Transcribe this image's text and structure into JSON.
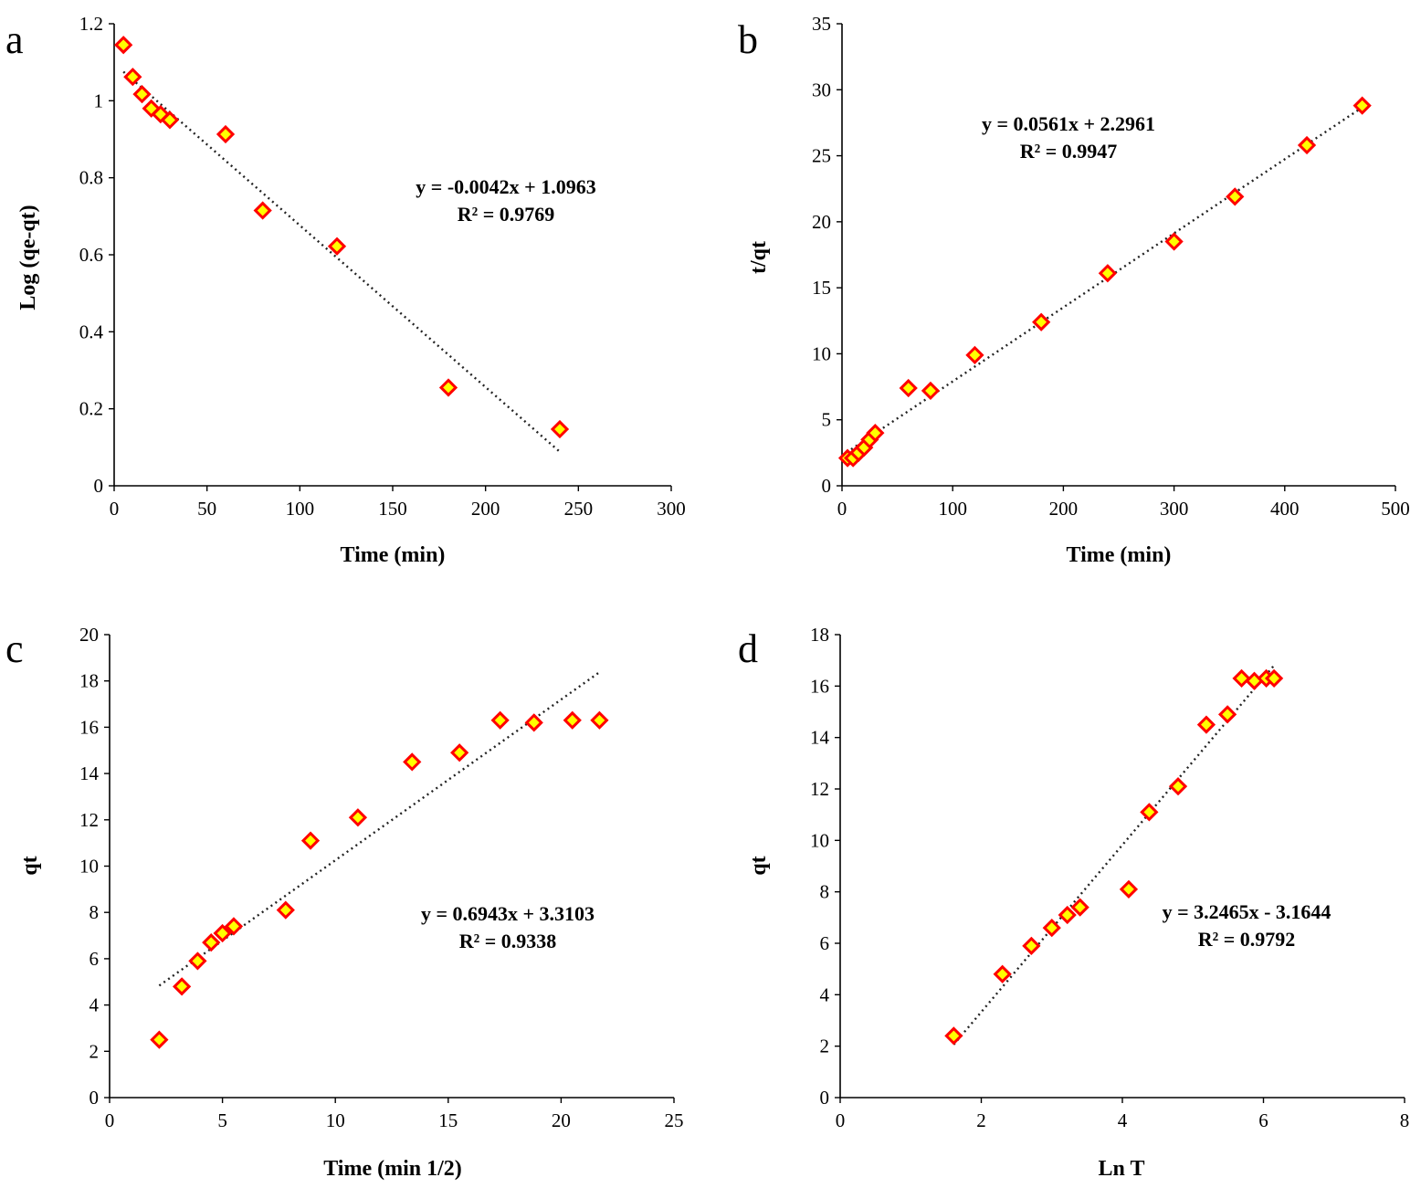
{
  "chart_data": [
    {
      "type": "scatter",
      "panel": "a",
      "xlabel": "Time (min)",
      "ylabel": "Log (qe-qt)",
      "xlim": [
        0,
        300
      ],
      "ylim": [
        0,
        1.2
      ],
      "xticks": [
        0,
        50,
        100,
        150,
        200,
        250,
        300
      ],
      "yticks": [
        0,
        0.2,
        0.4,
        0.6,
        0.8,
        1,
        1.2
      ],
      "x": [
        5,
        10,
        15,
        20,
        25,
        30,
        60,
        80,
        120,
        180,
        240
      ],
      "y": [
        1.145,
        1.062,
        1.017,
        0.98,
        0.965,
        0.95,
        0.913,
        0.715,
        0.622,
        0.255,
        0.147
      ],
      "trendline": {
        "slope": -0.0042,
        "intercept": 1.0963,
        "x_range": [
          5,
          240
        ]
      },
      "equation": "y = -0.0042x + 1.0963",
      "r2": "R² = 0.9769"
    },
    {
      "type": "scatter",
      "panel": "b",
      "xlabel": "Time (min)",
      "ylabel": "t/qt",
      "xlim": [
        0,
        500
      ],
      "ylim": [
        0,
        35
      ],
      "xticks": [
        0,
        100,
        200,
        300,
        400,
        500
      ],
      "yticks": [
        0,
        5,
        10,
        15,
        20,
        25,
        30,
        35
      ],
      "x": [
        5,
        10,
        15,
        20,
        25,
        30,
        60,
        80,
        120,
        180,
        240,
        300,
        355,
        420,
        470
      ],
      "y": [
        2.1,
        2.1,
        2.5,
        2.9,
        3.5,
        4.0,
        7.4,
        7.2,
        9.9,
        12.4,
        16.1,
        18.5,
        21.9,
        25.8,
        28.8
      ],
      "trendline": {
        "slope": 0.0561,
        "intercept": 2.2961,
        "x_range": [
          0,
          470
        ]
      },
      "equation": "y = 0.0561x + 2.2961",
      "r2": "R² = 0.9947"
    },
    {
      "type": "scatter",
      "panel": "c",
      "xlabel": "Time (min 1/2)",
      "ylabel": "qt",
      "xlim": [
        0,
        25
      ],
      "ylim": [
        0,
        20
      ],
      "xticks": [
        0,
        5,
        10,
        15,
        20,
        25
      ],
      "yticks": [
        0,
        2,
        4,
        6,
        8,
        10,
        12,
        14,
        16,
        18,
        20
      ],
      "x": [
        2.2,
        3.2,
        3.9,
        4.5,
        5.0,
        5.5,
        7.8,
        8.9,
        11.0,
        13.4,
        15.5,
        17.3,
        18.8,
        20.5,
        21.7
      ],
      "y": [
        2.5,
        4.8,
        5.9,
        6.7,
        7.1,
        7.4,
        8.1,
        11.1,
        12.1,
        14.5,
        14.9,
        16.3,
        16.2,
        16.3,
        16.3
      ],
      "trendline": {
        "slope": 0.6943,
        "intercept": 3.3103,
        "x_range": [
          2.2,
          21.7
        ]
      },
      "equation": "y = 0.6943x + 3.3103",
      "r2": "R² = 0.9338"
    },
    {
      "type": "scatter",
      "panel": "d",
      "xlabel": "Ln T",
      "ylabel": "qt",
      "xlim": [
        0,
        8
      ],
      "ylim": [
        0,
        18
      ],
      "xticks": [
        0,
        2,
        4,
        6,
        8
      ],
      "yticks": [
        0,
        2,
        4,
        6,
        8,
        10,
        12,
        14,
        16,
        18
      ],
      "x": [
        1.61,
        2.3,
        2.71,
        3.0,
        3.22,
        3.4,
        4.09,
        4.38,
        4.79,
        5.19,
        5.49,
        5.69,
        5.87,
        6.04,
        6.15
      ],
      "y": [
        2.4,
        4.8,
        5.9,
        6.6,
        7.1,
        7.4,
        8.1,
        11.1,
        12.1,
        14.5,
        14.9,
        16.3,
        16.2,
        16.3,
        16.3
      ],
      "trendline": {
        "slope": 3.2465,
        "intercept": -3.1644,
        "x_range": [
          1.61,
          6.15
        ]
      },
      "equation": "y = 3.2465x - 3.1644",
      "r2": "R² = 0.9792"
    }
  ]
}
